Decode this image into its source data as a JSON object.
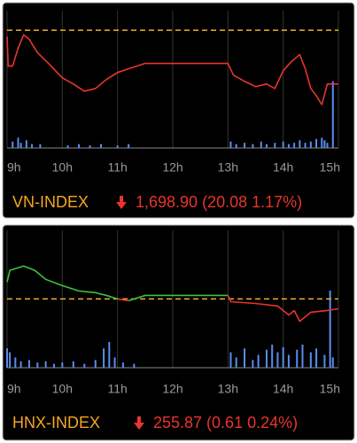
{
  "chart_data": [
    {
      "type": "line",
      "index_name": "VN-INDEX",
      "quote": "1,698.90 (20.08 1.17%)",
      "xlim": [
        9,
        15
      ],
      "xticks": [
        {
          "value": 9,
          "label": "9h"
        },
        {
          "value": 10,
          "label": "10h"
        },
        {
          "value": 11,
          "label": "11h"
        },
        {
          "value": 12,
          "label": "12h"
        },
        {
          "value": 13,
          "label": "13h"
        },
        {
          "value": 14,
          "label": "14h"
        },
        {
          "value": 15,
          "label": "15h"
        }
      ],
      "ylim": [
        1675,
        1723
      ],
      "reference_value": 1718.98,
      "reference_color": "#f0b030",
      "up_color": "#3cc43c",
      "down_color": "#e8352b",
      "price": {
        "x": [
          9.0,
          9.02,
          9.1,
          9.2,
          9.3,
          9.4,
          9.55,
          9.75,
          10.0,
          10.2,
          10.4,
          10.6,
          10.8,
          11.0,
          11.2,
          11.5,
          13.0,
          13.1,
          13.3,
          13.5,
          13.7,
          13.85,
          14.0,
          14.15,
          14.3,
          14.4,
          14.5,
          14.6,
          14.7,
          14.8,
          15.0
        ],
        "values": [
          1716.6,
          1705.6,
          1705.6,
          1712.3,
          1717.3,
          1715.6,
          1710.6,
          1706.6,
          1701.2,
          1698.9,
          1696.2,
          1697.2,
          1700.6,
          1703.2,
          1704.6,
          1706.6,
          1706.6,
          1702.2,
          1699.9,
          1697.9,
          1698.9,
          1697.2,
          1703.9,
          1707.3,
          1709.9,
          1704.6,
          1697.2,
          1694.5,
          1691.2,
          1698.9,
          1698.9
        ]
      },
      "y2lim": [
        0,
        100
      ],
      "volume": {
        "color": "#5b8def",
        "x": [
          9.1,
          9.2,
          9.25,
          9.35,
          9.45,
          9.6,
          10.1,
          10.3,
          10.5,
          10.7,
          11.0,
          11.2,
          13.05,
          13.15,
          13.3,
          13.45,
          13.6,
          13.7,
          13.85,
          14.0,
          14.1,
          14.2,
          14.3,
          14.4,
          14.5,
          14.6,
          14.7,
          14.75,
          14.8,
          14.9
        ],
        "values": [
          5,
          8,
          4,
          6,
          3,
          3,
          2,
          3,
          2,
          3,
          2,
          3,
          5,
          3,
          4,
          3,
          5,
          3,
          4,
          5,
          3,
          4,
          6,
          4,
          5,
          7,
          8,
          6,
          4,
          52
        ]
      }
    },
    {
      "type": "line",
      "index_name": "HNX-INDEX",
      "quote": "255.87 (0.61 0.24%)",
      "xlim": [
        9,
        15
      ],
      "xticks": [
        {
          "value": 9,
          "label": "9h"
        },
        {
          "value": 10,
          "label": "10h"
        },
        {
          "value": 11,
          "label": "11h"
        },
        {
          "value": 12,
          "label": "12h"
        },
        {
          "value": 13,
          "label": "13h"
        },
        {
          "value": 14,
          "label": "14h"
        },
        {
          "value": 15,
          "label": "15h"
        }
      ],
      "ylim": [
        252.2,
        260.2
      ],
      "reference_value": 256.48,
      "reference_color": "#f0b030",
      "up_color": "#3cc43c",
      "down_color": "#e8352b",
      "price": {
        "x": [
          9.0,
          9.05,
          9.3,
          9.5,
          9.7,
          10.0,
          10.3,
          10.6,
          10.8,
          11.0,
          11.2,
          11.5,
          13.0,
          13.05,
          13.5,
          13.9,
          14.1,
          14.2,
          14.3,
          14.5,
          14.8,
          15.0
        ],
        "values": [
          257.53,
          258.26,
          258.53,
          258.26,
          257.7,
          257.31,
          256.98,
          256.87,
          256.7,
          256.48,
          256.37,
          256.7,
          256.7,
          256.31,
          256.2,
          256.04,
          255.48,
          255.76,
          255.09,
          255.65,
          255.76,
          255.87
        ]
      },
      "y2lim": [
        0,
        100
      ],
      "volume": {
        "color": "#5b8def",
        "x": [
          9.0,
          9.05,
          9.15,
          9.25,
          9.4,
          9.55,
          9.7,
          9.85,
          10.0,
          10.2,
          10.4,
          10.6,
          10.75,
          10.85,
          10.95,
          11.1,
          11.3,
          13.05,
          13.15,
          13.3,
          13.45,
          13.55,
          13.7,
          13.8,
          13.9,
          14.0,
          14.1,
          14.25,
          14.35,
          14.5,
          14.6,
          14.75,
          14.85,
          14.9
        ],
        "values": [
          15,
          12,
          8,
          5,
          6,
          4,
          5,
          3,
          4,
          5,
          3,
          6,
          15,
          20,
          8,
          4,
          3,
          12,
          8,
          15,
          6,
          10,
          14,
          18,
          12,
          16,
          10,
          14,
          18,
          12,
          15,
          10,
          60,
          8
        ]
      }
    }
  ]
}
